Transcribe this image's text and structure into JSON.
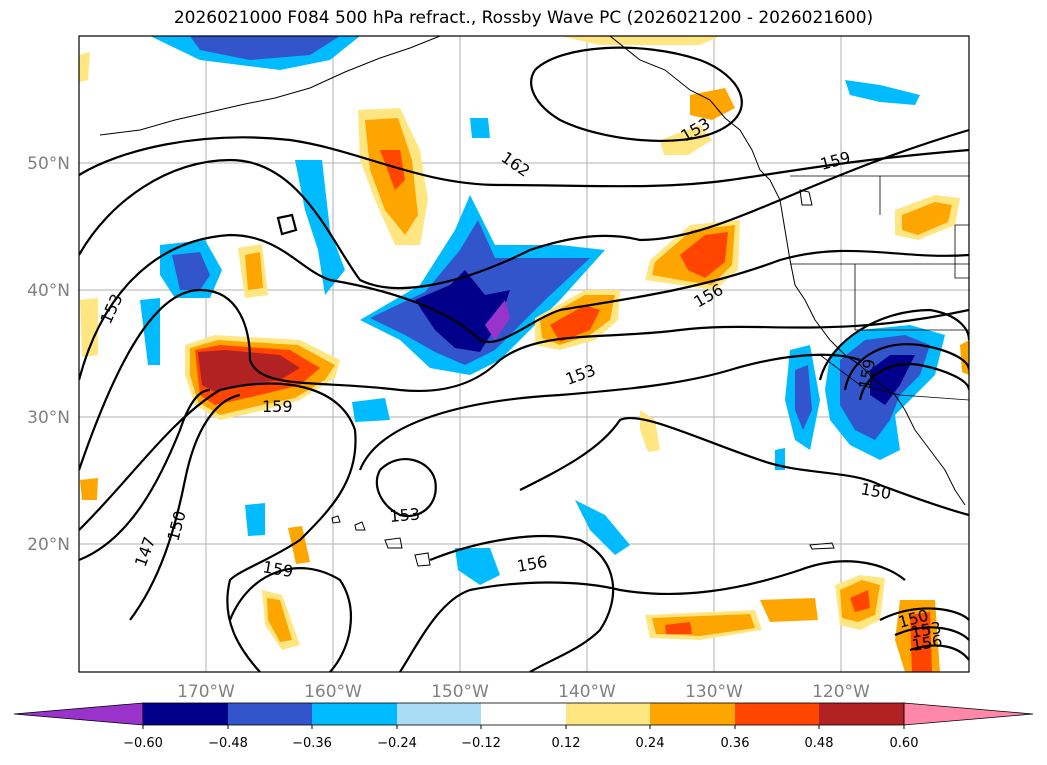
{
  "title": "2026021000 F084 500 hPa refract., Rossby Wave PC (2026021200 - 2026021600)",
  "axes": {
    "lon_ticks": [
      "170°W",
      "160°W",
      "150°W",
      "140°W",
      "130°W",
      "120°W"
    ],
    "lat_ticks": [
      "50°N",
      "40°N",
      "30°N",
      "20°N"
    ]
  },
  "contour_labels": [
    "162",
    "159",
    "159",
    "153",
    "153",
    "156",
    "153",
    "159",
    "150",
    "147",
    "153",
    "156",
    "150",
    "159",
    "150",
    "153",
    "156"
  ],
  "colorbar": {
    "ticks": [
      "−0.60",
      "−0.48",
      "−0.36",
      "−0.24",
      "−0.12",
      "0.12",
      "0.24",
      "0.36",
      "0.48",
      "0.60"
    ],
    "colors": [
      "#9933cc",
      "#00008b",
      "#3355cc",
      "#00bbff",
      "#aaddf5",
      "#ffffff",
      "#ffe680",
      "#ffa500",
      "#ff4500",
      "#b22222",
      "#ff88aa"
    ]
  }
}
